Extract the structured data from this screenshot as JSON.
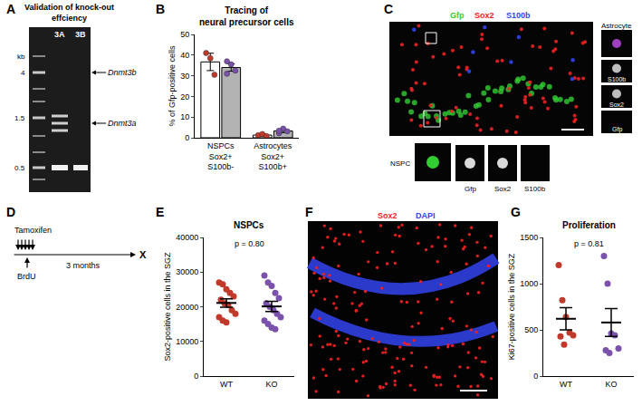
{
  "figure": {
    "panel_letters": [
      "A",
      "B",
      "C",
      "D",
      "E",
      "F",
      "G"
    ],
    "gel": {
      "title": "Validation of knock-out\neffciency",
      "lanes": [
        "3A",
        "3B"
      ],
      "size_unit": "kb",
      "ladder": [
        "4",
        "1.5",
        "0.5"
      ],
      "bands": [
        "Dnmt3b",
        "Dnmt3a"
      ]
    },
    "microscopy": {
      "channels": [
        {
          "label": "Gfp",
          "color": "#33cc33"
        },
        {
          "label": "Sox2",
          "color": "#ee2222"
        },
        {
          "label": "S100b",
          "color": "#3344ee"
        }
      ],
      "inset_astrocyte": {
        "title": "Astrocyte",
        "channels": [
          "S100b",
          "Sox2",
          "Gfp"
        ]
      },
      "inset_nspc": {
        "title": "NSPC",
        "channels": [
          "Gfp",
          "Sox2",
          "S100b"
        ]
      }
    },
    "timeline": {
      "treatment": "Tamoxifen",
      "label": "BrdU",
      "interval": "3 months",
      "endpoint": "X"
    },
    "section": {
      "channels": [
        {
          "label": "Sox2",
          "color": "#ee2222"
        },
        {
          "label": "DAPI",
          "color": "#3344ee"
        }
      ]
    }
  },
  "chart_data": [
    {
      "type": "bar",
      "title": "Tracing of\nneural precursor cells",
      "ylabel": "% of Gfp-positive cells",
      "categories": [
        "NSPCs\nSox2+\nS100b-",
        "Astrocytes\nSox2+\nS100b+"
      ],
      "series": [
        {
          "color": "#ffffff",
          "values": [
            36.7,
            1.3
          ],
          "errors": [
            4.2,
            0.5
          ],
          "points": [
            [
              41,
              38.5,
              30.5
            ],
            [
              1.2,
              1.8,
              0.8
            ]
          ],
          "point_color": "#c0392b"
        },
        {
          "color": "#b3b3b3",
          "values": [
            34,
            3.3
          ],
          "errors": [
            1.8,
            0.8
          ],
          "points": [
            [
              37,
              35.5,
              32.5,
              31
            ],
            [
              2.2,
              4.4,
              3.1,
              3.4
            ]
          ],
          "point_color": "#7b52ab"
        }
      ],
      "ylim": [
        0,
        50
      ],
      "yticks": [
        0,
        10,
        20,
        30,
        40,
        50
      ]
    },
    {
      "type": "dot",
      "title": "NSPCs",
      "ylabel": "Sox2-positive cells in the SGZ",
      "categories": [
        "WT",
        "KO"
      ],
      "colors": [
        "#c0392b",
        "#7b52ab"
      ],
      "points": [
        [
          27000,
          26500,
          25000,
          24000,
          23000,
          22000,
          21000,
          20500,
          19000,
          18000,
          17000,
          16000,
          15500
        ],
        [
          29000,
          27000,
          26000,
          24000,
          22500,
          21000,
          20000,
          19000,
          18000,
          17000,
          16000,
          15000,
          14000,
          13500
        ]
      ],
      "means": [
        21100,
        20100
      ],
      "errors": [
        1200,
        1500
      ],
      "annotation": "p = 0.80",
      "ylim": [
        0,
        40000
      ],
      "yticks": [
        0,
        10000,
        20000,
        30000,
        40000
      ]
    },
    {
      "type": "dot",
      "title": "Proliferation",
      "ylabel": "Ki67-positive cells in the SGZ",
      "categories": [
        "WT",
        "KO"
      ],
      "colors": [
        "#c0392b",
        "#7b52ab"
      ],
      "points": [
        [
          1200,
          820,
          640,
          470,
          440,
          430,
          340
        ],
        [
          1300,
          1000,
          460,
          440,
          300,
          280,
          250
        ]
      ],
      "means": [
        620,
        580
      ],
      "errors": [
        120,
        150
      ],
      "annotation": "p = 0.81",
      "ylim": [
        0,
        1500
      ],
      "yticks": [
        0,
        500,
        1000,
        1500
      ]
    }
  ]
}
